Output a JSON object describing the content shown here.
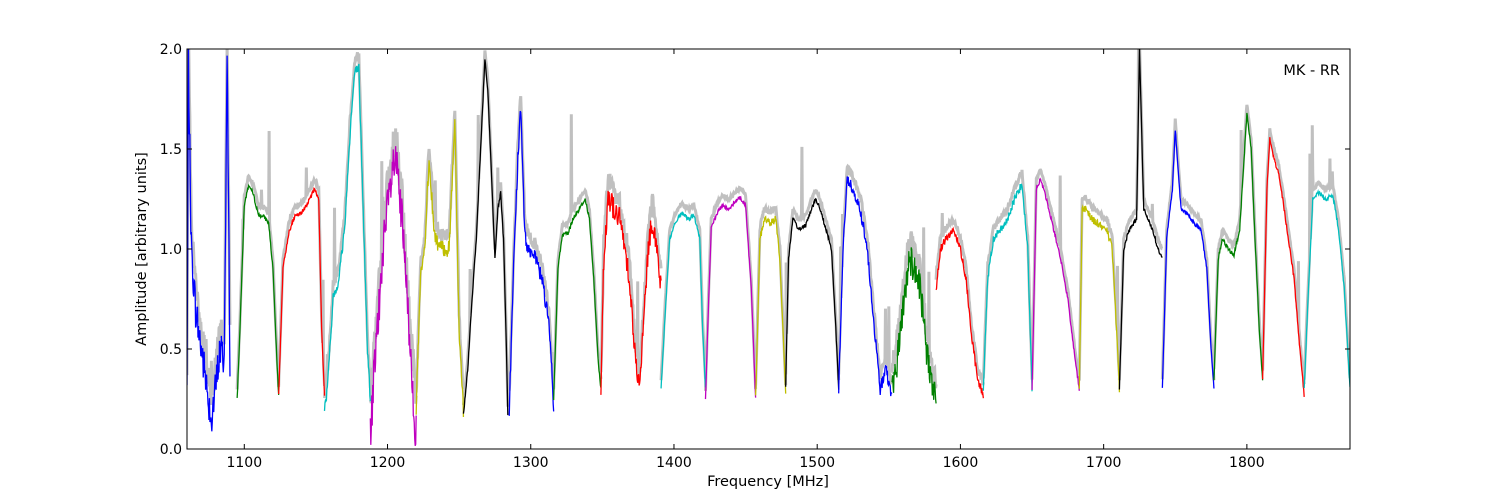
{
  "chart_data": {
    "type": "line",
    "xlabel": "Frequency [MHz]",
    "ylabel": "Amplitude [arbitrary units]",
    "annotation": "MK - RR",
    "xlim": [
      1060,
      1872
    ],
    "ylim": [
      0.0,
      2.0
    ],
    "xticks": [
      1100,
      1200,
      1300,
      1400,
      1500,
      1600,
      1700,
      1800
    ],
    "xtick_labels": [
      "1100",
      "1200",
      "1300",
      "1400",
      "1500",
      "1600",
      "1700",
      "1800"
    ],
    "yticks": [
      0.0,
      0.5,
      1.0,
      1.5,
      2.0
    ],
    "ytick_labels": [
      "0.0",
      "0.5",
      "1.0",
      "1.5",
      "2.0"
    ],
    "grid": false,
    "background_color": "#c0c0c0",
    "series": [
      {
        "color": "#0000ff",
        "noise": 0.1,
        "x": [
          1060,
          1061,
          1063,
          1066,
          1070,
          1074,
          1077,
          1080,
          1083,
          1086,
          1088,
          1090
        ],
        "y": [
          0.3,
          1.95,
          1.0,
          0.7,
          0.5,
          0.3,
          0.15,
          0.3,
          0.5,
          0.45,
          1.95,
          0.45
        ]
      },
      {
        "color": "#008000",
        "noise": 0.01,
        "x": [
          1095,
          1097,
          1100,
          1103,
          1106,
          1110,
          1114,
          1117,
          1120,
          1123,
          1124
        ],
        "y": [
          0.25,
          0.6,
          1.22,
          1.32,
          1.28,
          1.17,
          1.16,
          1.13,
          0.9,
          0.4,
          0.27
        ]
      },
      {
        "color": "#ff0000",
        "noise": 0.01,
        "x": [
          1124,
          1127,
          1131,
          1135,
          1140,
          1145,
          1149,
          1152,
          1154,
          1156
        ],
        "y": [
          0.27,
          0.9,
          1.08,
          1.16,
          1.18,
          1.24,
          1.3,
          1.25,
          0.6,
          0.27
        ]
      },
      {
        "color": "#00bfbf",
        "noise": 0.03,
        "x": [
          1156,
          1158,
          1162,
          1166,
          1170,
          1174,
          1177,
          1180,
          1183,
          1186,
          1188
        ],
        "y": [
          0.2,
          0.3,
          0.75,
          0.85,
          1.1,
          1.6,
          1.88,
          1.9,
          1.2,
          0.5,
          0.25
        ]
      },
      {
        "color": "#bf00bf",
        "noise": 0.12,
        "x": [
          1188,
          1190,
          1193,
          1197,
          1201,
          1205,
          1208,
          1211,
          1214,
          1217,
          1220
        ],
        "y": [
          0.05,
          0.3,
          0.6,
          1.0,
          1.25,
          1.45,
          1.3,
          1.05,
          0.7,
          0.4,
          0.05
        ]
      },
      {
        "color": "#bfbf00",
        "noise": 0.04,
        "x": [
          1220,
          1223,
          1226,
          1229,
          1233,
          1238,
          1243,
          1247,
          1250,
          1253
        ],
        "y": [
          0.2,
          0.85,
          1.0,
          1.45,
          1.05,
          1.0,
          1.0,
          1.65,
          0.6,
          0.2
        ]
      },
      {
        "color": "#000000",
        "noise": 0.01,
        "x": [
          1253,
          1256,
          1259,
          1262,
          1265,
          1268,
          1270,
          1273,
          1275,
          1277,
          1279,
          1281,
          1283,
          1284
        ],
        "y": [
          0.17,
          0.4,
          0.75,
          1.05,
          1.5,
          1.95,
          1.8,
          1.3,
          0.95,
          1.2,
          1.28,
          1.05,
          0.5,
          0.17
        ]
      },
      {
        "color": "#0000ff",
        "noise": 0.04,
        "x": [
          1285,
          1288,
          1291,
          1293,
          1296,
          1299,
          1303,
          1308,
          1313,
          1316
        ],
        "y": [
          0.2,
          0.9,
          1.45,
          1.7,
          1.05,
          1.0,
          0.95,
          0.85,
          0.6,
          0.22
        ]
      },
      {
        "color": "#008000",
        "noise": 0.01,
        "x": [
          1316,
          1319,
          1322,
          1326,
          1330,
          1334,
          1338,
          1341,
          1344,
          1347,
          1349
        ],
        "y": [
          0.25,
          0.9,
          1.07,
          1.08,
          1.16,
          1.2,
          1.25,
          1.15,
          0.85,
          0.45,
          0.3
        ]
      },
      {
        "color": "#ff0000",
        "noise": 0.06,
        "x": [
          1349,
          1351,
          1354,
          1358,
          1362,
          1366,
          1369,
          1373,
          1376,
          1379,
          1382,
          1385,
          1388,
          1391
        ],
        "y": [
          0.3,
          0.95,
          1.27,
          1.2,
          1.15,
          1.0,
          0.85,
          0.45,
          0.3,
          0.65,
          1.0,
          1.15,
          1.0,
          0.8
        ]
      },
      {
        "color": "#00bfbf",
        "noise": 0.01,
        "x": [
          1391,
          1394,
          1397,
          1401,
          1405,
          1410,
          1414,
          1418,
          1420,
          1422
        ],
        "y": [
          0.3,
          0.7,
          1.05,
          1.13,
          1.18,
          1.15,
          1.17,
          1.05,
          0.6,
          0.3
        ]
      },
      {
        "color": "#bf00bf",
        "noise": 0.01,
        "x": [
          1422,
          1424,
          1426,
          1430,
          1434,
          1438,
          1442,
          1446,
          1450,
          1454,
          1457
        ],
        "y": [
          0.25,
          0.7,
          1.1,
          1.18,
          1.22,
          1.2,
          1.23,
          1.26,
          1.22,
          0.8,
          0.25
        ]
      },
      {
        "color": "#bfbf00",
        "noise": 0.02,
        "x": [
          1457,
          1460,
          1463,
          1467,
          1471,
          1474,
          1476,
          1478
        ],
        "y": [
          0.25,
          1.05,
          1.15,
          1.13,
          1.15,
          0.95,
          0.6,
          0.27
        ]
      },
      {
        "color": "#000000",
        "noise": 0.01,
        "x": [
          1478,
          1480,
          1483,
          1487,
          1492,
          1496,
          1499,
          1502,
          1506,
          1510,
          1513,
          1515
        ],
        "y": [
          0.32,
          0.95,
          1.15,
          1.1,
          1.12,
          1.2,
          1.25,
          1.2,
          1.1,
          1.0,
          0.6,
          0.3
        ]
      },
      {
        "color": "#0000ff",
        "noise": 0.03,
        "x": [
          1515,
          1518,
          1521,
          1525,
          1530,
          1535,
          1540,
          1544,
          1548,
          1552
        ],
        "y": [
          0.3,
          1.0,
          1.35,
          1.3,
          1.2,
          1.0,
          0.6,
          0.3,
          0.4,
          0.25
        ]
      },
      {
        "color": "#008000",
        "noise": 0.08,
        "x": [
          1552,
          1556,
          1560,
          1564,
          1568,
          1572,
          1576,
          1580,
          1583
        ],
        "y": [
          0.3,
          0.45,
          0.7,
          0.95,
          0.9,
          0.8,
          0.5,
          0.3,
          0.25
        ]
      },
      {
        "color": "#ff0000",
        "noise": 0.02,
        "x": [
          1583,
          1586,
          1590,
          1595,
          1600,
          1604,
          1608,
          1612,
          1616
        ],
        "y": [
          0.8,
          1.0,
          1.05,
          1.1,
          1.0,
          0.85,
          0.55,
          0.35,
          0.27
        ]
      },
      {
        "color": "#00bfbf",
        "noise": 0.02,
        "x": [
          1616,
          1619,
          1623,
          1628,
          1633,
          1638,
          1643,
          1647,
          1650
        ],
        "y": [
          0.3,
          0.85,
          1.05,
          1.1,
          1.15,
          1.25,
          1.33,
          1.0,
          0.3
        ]
      },
      {
        "color": "#bf00bf",
        "noise": 0.01,
        "x": [
          1650,
          1653,
          1656,
          1660,
          1665,
          1670,
          1675,
          1680,
          1683
        ],
        "y": [
          0.3,
          1.3,
          1.35,
          1.25,
          1.1,
          0.95,
          0.75,
          0.45,
          0.3
        ]
      },
      {
        "color": "#bfbf00",
        "noise": 0.02,
        "x": [
          1683,
          1685,
          1688,
          1692,
          1697,
          1702,
          1706,
          1709,
          1711
        ],
        "y": [
          0.3,
          1.2,
          1.2,
          1.15,
          1.12,
          1.1,
          1.0,
          0.6,
          0.3
        ]
      },
      {
        "color": "#000000",
        "noise": 0.01,
        "x": [
          1711,
          1714,
          1717,
          1720,
          1723,
          1725,
          1728,
          1731,
          1734,
          1738,
          1741
        ],
        "y": [
          0.3,
          1.0,
          1.08,
          1.12,
          1.15,
          2.0,
          1.2,
          1.15,
          1.1,
          1.0,
          0.95
        ]
      },
      {
        "color": "#0000ff",
        "noise": 0.01,
        "x": [
          1741,
          1744,
          1748,
          1750,
          1754,
          1758,
          1764,
          1768,
          1772,
          1775,
          1777
        ],
        "y": [
          0.3,
          1.05,
          1.3,
          1.6,
          1.2,
          1.18,
          1.12,
          1.1,
          0.9,
          0.5,
          0.3
        ]
      },
      {
        "color": "#008000",
        "noise": 0.01,
        "x": [
          1777,
          1780,
          1783,
          1787,
          1791,
          1795,
          1798,
          1800,
          1803,
          1806,
          1809,
          1811
        ],
        "y": [
          0.35,
          0.95,
          1.05,
          1.0,
          0.97,
          1.1,
          1.45,
          1.68,
          1.5,
          1.0,
          0.55,
          0.35
        ]
      },
      {
        "color": "#ff0000",
        "noise": 0.01,
        "x": [
          1811,
          1814,
          1816,
          1819,
          1822,
          1825,
          1829,
          1833,
          1837,
          1840
        ],
        "y": [
          0.35,
          1.3,
          1.55,
          1.45,
          1.38,
          1.25,
          1.05,
          0.85,
          0.5,
          0.27
        ]
      },
      {
        "color": "#00bfbf",
        "noise": 0.01,
        "x": [
          1840,
          1843,
          1846,
          1850,
          1855,
          1860,
          1864,
          1868,
          1872
        ],
        "y": [
          0.3,
          0.8,
          1.25,
          1.28,
          1.25,
          1.27,
          1.1,
          0.8,
          0.3
        ]
      }
    ]
  }
}
